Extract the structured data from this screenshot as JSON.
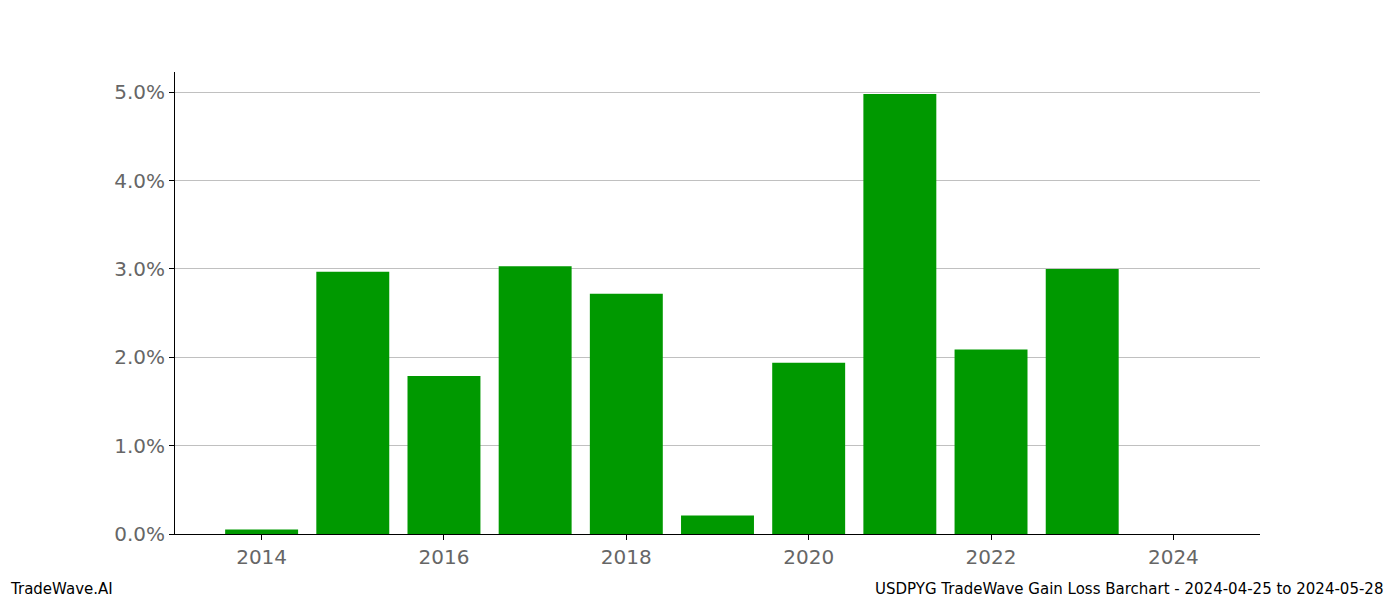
{
  "chart_data": {
    "type": "bar",
    "x": [
      2014,
      2015,
      2016,
      2017,
      2018,
      2019,
      2020,
      2021,
      2022,
      2023
    ],
    "values": [
      0.05,
      2.97,
      1.79,
      3.03,
      2.72,
      0.21,
      1.94,
      4.98,
      2.09,
      3.0
    ],
    "color": "#009900",
    "xlim": [
      2013.05,
      2024.95
    ],
    "xticks": [
      2014,
      2016,
      2018,
      2020,
      2022,
      2024
    ],
    "ylim": [
      0,
      5.23
    ],
    "yticks": [
      {
        "value": 0,
        "label": "0.0%"
      },
      {
        "value": 1,
        "label": "1.0%"
      },
      {
        "value": 2,
        "label": "2.0%"
      },
      {
        "value": 3,
        "label": "3.0%"
      },
      {
        "value": 4,
        "label": "4.0%"
      },
      {
        "value": 5,
        "label": "5.0%"
      }
    ],
    "grid": true,
    "annotations": [
      "TradeWave.AI",
      "USDPYG TradeWave Gain Loss Barchart - 2024-04-25 to 2024-05-28"
    ]
  }
}
